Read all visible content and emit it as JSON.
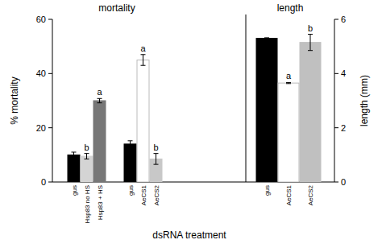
{
  "chart_data": [
    {
      "type": "bar",
      "title": "mortality",
      "y_label": "% mortality",
      "x_label": "dsRNA treatment",
      "categories": [
        "gus",
        "Hsp83 no HS",
        "Hsp83 + HS",
        "gus",
        "AeCS1",
        "AeCS2"
      ],
      "values": [
        10,
        9.5,
        30,
        14,
        45,
        8.5
      ],
      "errors": [
        1,
        1,
        0.8,
        1.2,
        2,
        2
      ],
      "annotations": [
        null,
        "b",
        "a",
        null,
        "a",
        "b"
      ],
      "colors": [
        "#000000",
        "#d4d4d4",
        "#777777",
        "#000000",
        "#ffffff",
        "#c8c8c8"
      ],
      "ylim": [
        0,
        60
      ],
      "yticks": [
        0,
        20,
        40,
        60
      ]
    },
    {
      "type": "bar",
      "title": "length",
      "y_label": "length (mm)",
      "categories": [
        "gus",
        "AeCS1",
        "AeCS2"
      ],
      "values": [
        5.3,
        3.65,
        5.15
      ],
      "errors": [
        0.02,
        0.02,
        0.3
      ],
      "annotations": [
        null,
        "a",
        "b"
      ],
      "colors": [
        "#000000",
        "#ffffff",
        "#c0c0c0"
      ],
      "ylim": [
        0,
        6
      ],
      "yticks": [
        0,
        2,
        4,
        6
      ]
    }
  ]
}
